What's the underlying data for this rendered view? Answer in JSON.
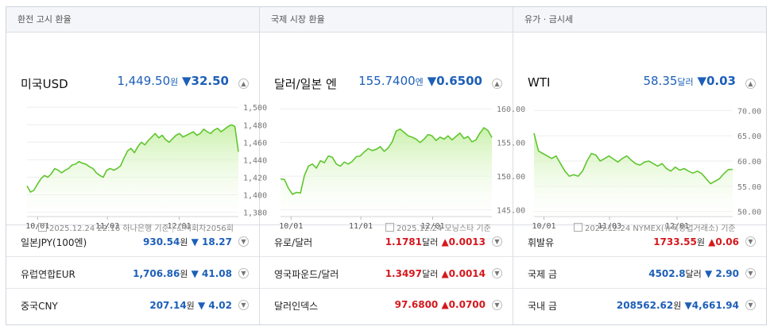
{
  "columns": [
    {
      "header": "환전 고시 환율",
      "main": {
        "name": "미국USD",
        "value": "1,449.50",
        "unit": "원",
        "change": "▼32.50",
        "dir": "down",
        "source_date": "2025.12.24 22:16 하나은행 기준",
        "source_extra": "고시회차2056회"
      },
      "rows": [
        {
          "name": "일본JPY(100엔)",
          "value": "930.54",
          "unit": "원",
          "change": "▼ 18.27",
          "dir": "down"
        },
        {
          "name": "유럽연합EUR",
          "value": "1,706.86",
          "unit": "원",
          "change": "▼ 41.08",
          "dir": "down"
        },
        {
          "name": "중국CNY",
          "value": "207.14",
          "unit": "원",
          "change": "▼ 4.02",
          "dir": "down"
        }
      ]
    },
    {
      "header": "국제 시장 환율",
      "main": {
        "name": "달러/일본 엔",
        "value": "155.7400",
        "unit": "엔",
        "change": "▼0.6500",
        "dir": "down",
        "source_date": "2025.12.24 모닝스타 기준",
        "source_extra": ""
      },
      "rows": [
        {
          "name": "유로/달러",
          "value": "1.1781",
          "unit": "달러",
          "change": "▲0.0013",
          "dir": "up"
        },
        {
          "name": "영국파운드/달러",
          "value": "1.3497",
          "unit": "달러",
          "change": "▲0.0014",
          "dir": "up"
        },
        {
          "name": "달러인덱스",
          "value": "97.6800",
          "unit": "",
          "change": "▲0.0700",
          "dir": "up"
        }
      ]
    },
    {
      "header": "유가 · 금시세",
      "main": {
        "name": "WTI",
        "value": "58.35",
        "unit": "달러",
        "change": "▼0.03",
        "dir": "down",
        "source_date": "2025.12.24 NYMEX(뉴욕상업거래소) 기준",
        "source_extra": ""
      },
      "rows": [
        {
          "name": "휘발유",
          "value": "1733.55",
          "unit": "원",
          "change": "▲0.06",
          "dir": "up"
        },
        {
          "name": "국제 금",
          "value": "4502.8",
          "unit": "달러",
          "change": "▼ 2.90",
          "dir": "down"
        },
        {
          "name": "국내 금",
          "value": "208562.62",
          "unit": "원",
          "change": "▼4,661.94",
          "dir": "down"
        }
      ]
    }
  ],
  "chart_data": [
    {
      "type": "area",
      "x_ticks": [
        "10/01",
        "11/03",
        "12/01"
      ],
      "y_ticks": [
        "1,500",
        "1,480",
        "1,460",
        "1,440",
        "1,420",
        "1,400",
        "1,380"
      ],
      "ylim": [
        1375,
        1502
      ],
      "color": "#5fc62e",
      "values": [
        1410,
        1403,
        1405,
        1412,
        1418,
        1422,
        1420,
        1424,
        1430,
        1428,
        1425,
        1428,
        1430,
        1434,
        1435,
        1438,
        1436,
        1435,
        1432,
        1430,
        1425,
        1422,
        1420,
        1428,
        1430,
        1428,
        1430,
        1433,
        1442,
        1450,
        1453,
        1448,
        1455,
        1460,
        1457,
        1462,
        1466,
        1470,
        1465,
        1468,
        1463,
        1460,
        1464,
        1468,
        1470,
        1466,
        1468,
        1470,
        1472,
        1468,
        1470,
        1475,
        1472,
        1470,
        1474,
        1476,
        1472,
        1475,
        1478,
        1480,
        1478,
        1449
      ]
    },
    {
      "type": "area",
      "x_ticks": [
        "10/01",
        "11/01",
        "12/01"
      ],
      "y_ticks": [
        "160.00",
        "155.00",
        "150.00",
        "145.00"
      ],
      "ylim": [
        144,
        160.5
      ],
      "color": "#5fc62e",
      "values": [
        149.6,
        149.5,
        148.2,
        147.3,
        147.6,
        147.5,
        150.1,
        151.5,
        151.8,
        151.2,
        152.3,
        152.0,
        153.0,
        152.8,
        151.8,
        151.5,
        152.1,
        151.8,
        152.2,
        152.9,
        153.0,
        153.6,
        154.1,
        153.8,
        154.0,
        154.4,
        153.7,
        154.2,
        155.1,
        156.7,
        157.0,
        156.5,
        156.0,
        155.8,
        155.5,
        155.0,
        155.5,
        156.2,
        156.0,
        155.3,
        155.8,
        155.5,
        156.0,
        155.4,
        155.9,
        156.4,
        155.6,
        155.9,
        155.1,
        155.4,
        156.4,
        157.2,
        156.8,
        155.74
      ]
    },
    {
      "type": "area",
      "x_ticks": [
        "10/01",
        "11/03",
        "12/01"
      ],
      "y_ticks": [
        "70.00",
        "65.00",
        "60.00",
        "55.00",
        "50.00"
      ],
      "ylim": [
        49,
        71
      ],
      "color": "#5fc62e",
      "values": [
        65.5,
        62.0,
        61.5,
        61.0,
        60.5,
        61.0,
        59.5,
        58.0,
        57.0,
        57.3,
        57.0,
        58.0,
        60.0,
        61.5,
        61.2,
        60.0,
        60.5,
        61.0,
        60.4,
        59.8,
        60.5,
        61.0,
        60.2,
        59.5,
        59.2,
        59.8,
        60.0,
        59.5,
        59.0,
        59.5,
        58.5,
        58.0,
        58.8,
        58.2,
        58.5,
        58.0,
        57.6,
        58.0,
        57.5,
        56.5,
        55.5,
        56.0,
        56.5,
        57.5,
        58.3,
        58.35
      ]
    }
  ]
}
